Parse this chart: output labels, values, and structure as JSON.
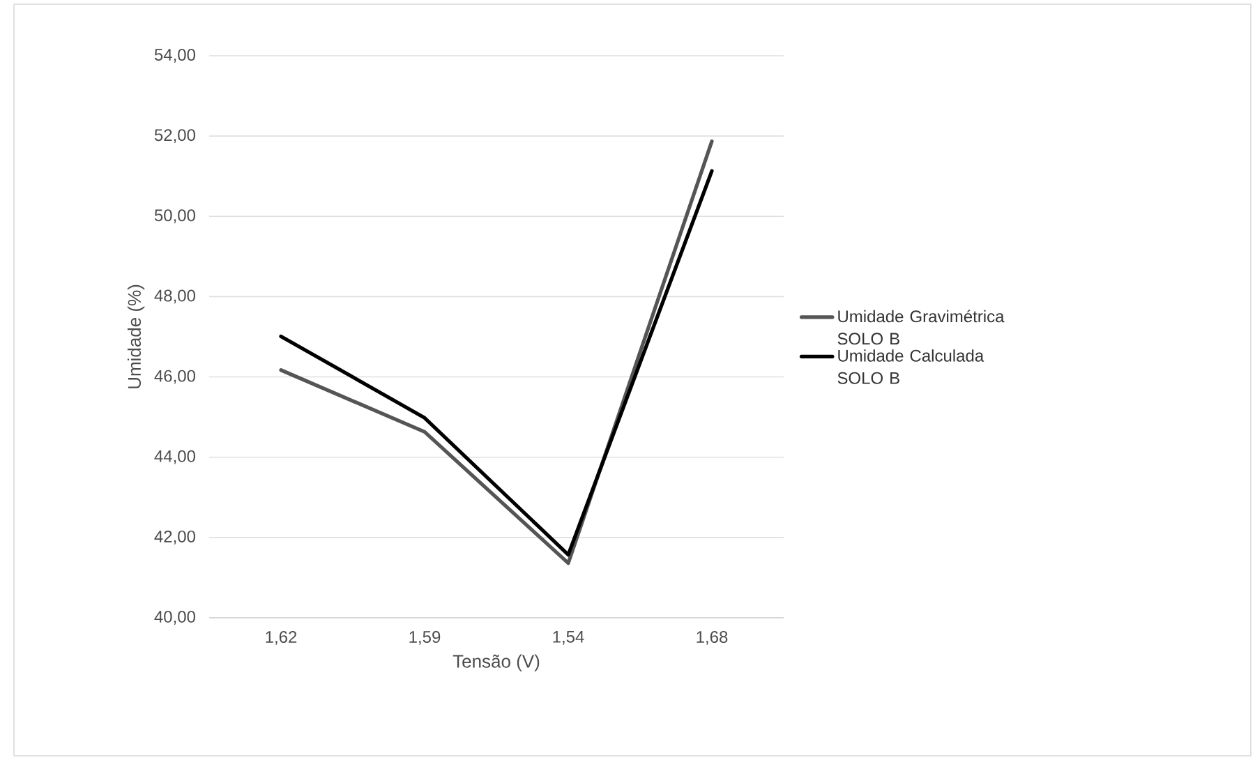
{
  "chart_data": {
    "type": "line",
    "xlabel": "Tensão (V)",
    "ylabel": "Umidade (%)",
    "categories": [
      "1,62",
      "1,59",
      "1,54",
      "1,68"
    ],
    "series": [
      {
        "name": "Umidade Gravimétrica SOLO B",
        "color": "#555555",
        "values": [
          46.17,
          44.63,
          41.36,
          51.87
        ]
      },
      {
        "name": "Umidade Calculada SOLO B",
        "color": "#000000",
        "line_style": "solid",
        "values": [
          47.01,
          44.98,
          41.57,
          51.13
        ]
      }
    ],
    "ylim": [
      40,
      54
    ],
    "yticks": [
      {
        "value": 40,
        "label": "40,00"
      },
      {
        "value": 42,
        "label": "42,00"
      },
      {
        "value": 44,
        "label": "44,00"
      },
      {
        "value": 46,
        "label": "46,00"
      },
      {
        "value": 48,
        "label": "48,00"
      },
      {
        "value": 50,
        "label": "50,00"
      },
      {
        "value": 52,
        "label": "52,00"
      },
      {
        "value": 54,
        "label": "54,00"
      }
    ],
    "grid": "y",
    "legend": "right",
    "marker": "none"
  }
}
